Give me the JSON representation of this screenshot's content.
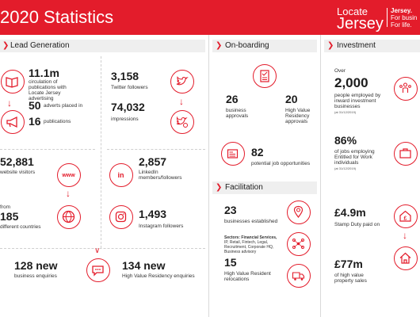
{
  "header": {
    "title": "2020 Statistics",
    "logo_line1": "Locate",
    "logo_line2": "Jersey",
    "tagline_1": "Jersey.",
    "tagline_2": "For busin",
    "tagline_3": "For life."
  },
  "colors": {
    "brand_red": "#e31c2b",
    "bar_grey": "#efefef"
  },
  "sections": {
    "lead_generation": "Lead Generation",
    "onboarding": "On-boarding",
    "investment": "Investment",
    "facilitation": "Facilitation"
  },
  "lead": {
    "circulation_value": "11.1m",
    "circulation_label_1": "circulation of",
    "circulation_label_2": "publications with",
    "circulation_label_3": "Locate Jersey",
    "circulation_label_4": "advertising",
    "adverts_value": "50",
    "adverts_label_1": "adverts placed in",
    "publications_value": "16",
    "publications_label": "publications",
    "twitter_value": "3,158",
    "twitter_label": "Twitter followers",
    "impressions_value": "74,032",
    "impressions_label": "impressions",
    "visitors_value": "52,881",
    "visitors_label": "website visitors",
    "countries_pre": "from",
    "countries_value": "185",
    "countries_label": "different countries",
    "linkedin_value": "2,857",
    "linkedin_label_1": "LinkedIn",
    "linkedin_label_2": "members/followers",
    "instagram_value": "1,493",
    "instagram_label": "Instagram followers",
    "enquiries_value": "128 new",
    "enquiries_label": "business enquiries",
    "hvr_value": "134 new",
    "hvr_label": "High Value Residency enquiries"
  },
  "onboarding": {
    "business_value": "26",
    "business_label_1": "business",
    "business_label_2": "approvals",
    "hvr_value": "20",
    "hvr_label_1": "High Value",
    "hvr_label_2": "Residency",
    "hvr_label_3": "approvals",
    "jobs_value": "82",
    "jobs_label": "potential job opportunities"
  },
  "facilitation": {
    "established_value": "23",
    "established_label": "businesses established",
    "sectors_1": "Sectors: Financial Services,",
    "sectors_2": "IP, Retail, Fintech, Legal,",
    "sectors_3": "Recruitment, Corporate HQ,",
    "sectors_4": "Business advisory",
    "relocations_value": "15",
    "relocations_label_1": "High Value Resident",
    "relocations_label_2": "relocations"
  },
  "investment": {
    "over": "Over",
    "employed_value": "2,000",
    "employed_label_1": "people employed by",
    "employed_label_2": "inward investment",
    "employed_label_3": "businesses",
    "employed_note": "(at 31/12/2019)",
    "jobs_pct": "86%",
    "jobs_label_1": "of jobs employing",
    "jobs_label_2": "Entitled for Work",
    "jobs_label_3": "individuals",
    "jobs_note": "(at 31/12/2019)",
    "stamp_value": "£4.9m",
    "stamp_label": "Stamp Duty paid on",
    "sales_value": "£77m",
    "sales_label_1": "of high value",
    "sales_label_2": "property sales"
  },
  "icons": [
    "book-icon",
    "twitter-icon",
    "megaphone-icon",
    "twitter-impressions-icon",
    "www-icon",
    "linkedin-icon",
    "globe-icon",
    "instagram-icon",
    "chat-icon",
    "checklist-icon",
    "jobs-newspaper-icon",
    "location-search-icon",
    "network-icon",
    "truck-icon",
    "people-icon",
    "briefcase-icon",
    "pound-house-icon",
    "house-icon"
  ]
}
